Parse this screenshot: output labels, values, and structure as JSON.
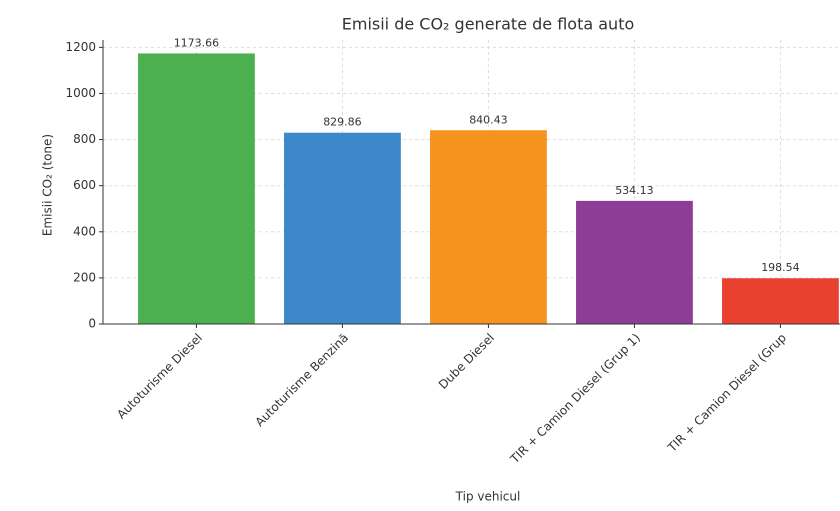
{
  "chart_data": {
    "type": "bar",
    "title": "Emisii de CO₂ generate de flota auto",
    "xlabel": "Tip vehicul",
    "ylabel": "Emisii CO₂ (tone)",
    "categories": [
      "Autoturisme Diesel",
      "Autoturisme Benzină",
      "Dube Diesel",
      "TIR + Camion Diesel (Grup 1)",
      "TIR + Camion Diesel (Grup"
    ],
    "values": [
      1173.66,
      829.86,
      840.43,
      534.13,
      198.54
    ],
    "colors": [
      "#4caf50",
      "#3d88c9",
      "#f6921e",
      "#8e3d97",
      "#e8412f"
    ],
    "ylim": [
      0,
      1232
    ],
    "yticks": [
      0,
      200,
      400,
      600,
      800,
      1000,
      1200
    ],
    "grid": true
  }
}
